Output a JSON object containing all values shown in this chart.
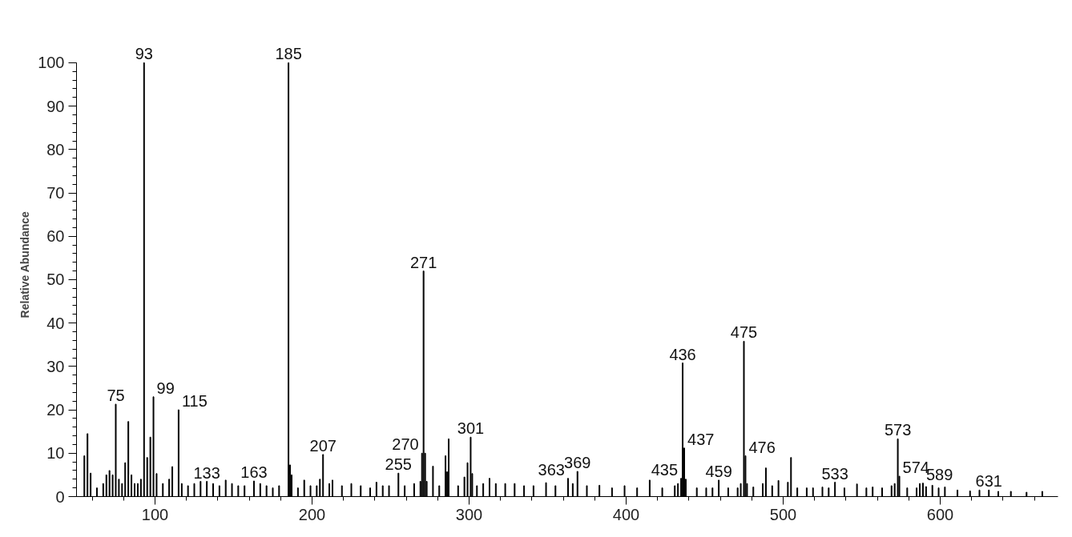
{
  "chart_data": {
    "type": "bar",
    "ylabel": "Relative Abundance",
    "xlim": [
      50,
      675
    ],
    "xticks": [
      100,
      200,
      300,
      400,
      500,
      600
    ],
    "ylim": [
      0,
      100
    ],
    "yticks": [
      0,
      10,
      20,
      30,
      40,
      50,
      60,
      70,
      80,
      90,
      100
    ],
    "grid": false,
    "color": "#000000",
    "x": [
      55,
      57,
      59,
      63,
      67,
      69,
      71,
      73,
      75,
      77,
      79,
      81,
      83,
      85,
      87,
      89,
      91,
      93,
      95,
      97,
      99,
      101,
      105,
      109,
      111,
      115,
      117,
      121,
      125,
      129,
      133,
      137,
      141,
      145,
      149,
      153,
      157,
      163,
      167,
      171,
      175,
      179,
      185,
      186,
      187,
      191,
      195,
      199,
      203,
      205,
      207,
      211,
      213,
      219,
      225,
      231,
      237,
      241,
      245,
      249,
      255,
      259,
      265,
      269,
      270,
      271,
      272,
      273,
      277,
      281,
      285,
      286,
      287,
      293,
      297,
      299,
      301,
      302,
      305,
      309,
      313,
      317,
      323,
      329,
      335,
      341,
      349,
      355,
      363,
      366,
      369,
      375,
      383,
      391,
      399,
      407,
      415,
      423,
      431,
      433,
      435,
      436,
      437,
      438,
      445,
      451,
      455,
      459,
      465,
      471,
      473,
      475,
      476,
      477,
      481,
      487,
      489,
      493,
      497,
      503,
      505,
      509,
      515,
      519,
      525,
      529,
      533,
      539,
      547,
      553,
      557,
      563,
      569,
      571,
      573,
      574,
      579,
      585,
      587,
      589,
      591,
      595,
      599,
      603,
      611,
      619,
      625,
      631,
      637,
      645,
      655,
      665
    ],
    "values": [
      9.4,
      14.5,
      5.4,
      2,
      3,
      5,
      6,
      5,
      21.3,
      4,
      3,
      7.8,
      17.3,
      5,
      3,
      3,
      4,
      100,
      9,
      13.7,
      23,
      5.3,
      3,
      4,
      6.9,
      20,
      3,
      2.5,
      3,
      3.5,
      3.5,
      3,
      2.5,
      3.8,
      3,
      2.5,
      2.5,
      3.6,
      3,
      2.5,
      2,
      2.5,
      100,
      7.3,
      5,
      2,
      3.8,
      2.5,
      2.5,
      4,
      9.7,
      3,
      3.8,
      2.5,
      3,
      2.5,
      2,
      3.3,
      2.5,
      2.5,
      5.4,
      2.5,
      3,
      3.5,
      10,
      52,
      10,
      3.5,
      7,
      2.5,
      9.4,
      5.7,
      13.3,
      2.5,
      4.5,
      7.8,
      13.7,
      5.3,
      2.5,
      3,
      4.2,
      3,
      3,
      3,
      2.5,
      2.5,
      3.2,
      2.5,
      4.2,
      3,
      5.8,
      2.5,
      2.6,
      2,
      2.5,
      2,
      3.8,
      2,
      2.5,
      3,
      4.2,
      30.8,
      11.2,
      4,
      2,
      2,
      2,
      3.8,
      2,
      2,
      3,
      35.8,
      9.4,
      3,
      2.2,
      3,
      6.6,
      2.5,
      3.7,
      3.3,
      9,
      2,
      2,
      2,
      2.2,
      2,
      3.3,
      2,
      2.9,
      2,
      2.2,
      2,
      2.5,
      3,
      13.3,
      4.7,
      2,
      2,
      3,
      3.1,
      2.3,
      2.6,
      2,
      2.2,
      1.5,
      1.3,
      1.5,
      1.5,
      1.2,
      1.2,
      1,
      1.2
    ],
    "annotations": [
      {
        "text": "75",
        "x": 75,
        "y": 21.3
      },
      {
        "text": "93",
        "x": 93,
        "y": 100
      },
      {
        "text": "99",
        "x": 99,
        "y": 23
      },
      {
        "text": "115",
        "x": 115,
        "y": 20
      },
      {
        "text": "133",
        "x": 133,
        "y": 3.5
      },
      {
        "text": "163",
        "x": 163,
        "y": 3.6
      },
      {
        "text": "185",
        "x": 185,
        "y": 100
      },
      {
        "text": "207",
        "x": 207,
        "y": 9.7
      },
      {
        "text": "255",
        "x": 255,
        "y": 5.4
      },
      {
        "text": "270",
        "x": 270,
        "y": 10
      },
      {
        "text": "271",
        "x": 271,
        "y": 52
      },
      {
        "text": "301",
        "x": 301,
        "y": 13.7
      },
      {
        "text": "363",
        "x": 363,
        "y": 4.2
      },
      {
        "text": "369",
        "x": 369,
        "y": 5.8
      },
      {
        "text": "435",
        "x": 435,
        "y": 4.2
      },
      {
        "text": "436",
        "x": 436,
        "y": 30.8
      },
      {
        "text": "437",
        "x": 437,
        "y": 11.2
      },
      {
        "text": "459",
        "x": 459,
        "y": 3.8
      },
      {
        "text": "475",
        "x": 475,
        "y": 35.8
      },
      {
        "text": "476",
        "x": 476,
        "y": 9.4
      },
      {
        "text": "533",
        "x": 533,
        "y": 3.3
      },
      {
        "text": "573",
        "x": 573,
        "y": 13.3
      },
      {
        "text": "574",
        "x": 574,
        "y": 4.7
      },
      {
        "text": "589",
        "x": 589,
        "y": 3.1
      },
      {
        "text": "631",
        "x": 631,
        "y": 1.5
      }
    ]
  }
}
